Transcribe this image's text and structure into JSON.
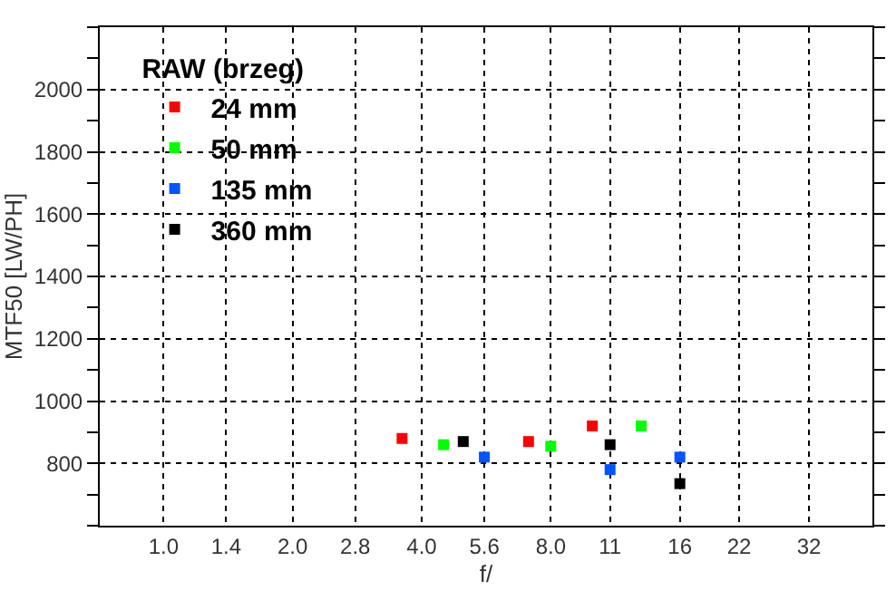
{
  "chart_data": {
    "type": "scatter",
    "xlabel": "f/",
    "ylabel": "MTF50 [LW/PH]",
    "legend_title": "RAW (brzeg)",
    "log": "x",
    "marker": "square",
    "grid": true,
    "legend": "top left",
    "xlim": [
      0.71,
      45
    ],
    "ylim": [
      600,
      2200
    ],
    "xticks": [
      {
        "value": 1,
        "label": "1.0"
      },
      {
        "value": 1.4,
        "label": "1.4"
      },
      {
        "value": 2,
        "label": "2.0"
      },
      {
        "value": 2.8,
        "label": "2.8"
      },
      {
        "value": 4,
        "label": "4.0"
      },
      {
        "value": 5.6,
        "label": "5.6"
      },
      {
        "value": 8,
        "label": "8.0"
      },
      11,
      16,
      22,
      32
    ],
    "yticks": [
      800,
      1000,
      1200,
      1400,
      1600,
      1800,
      2000
    ],
    "series": [
      {
        "name": "24 mm",
        "color": "#ff0000",
        "x": [
          3.6,
          7.1,
          10
        ],
        "values": [
          880,
          870,
          920
        ]
      },
      {
        "name": "50 mm",
        "color": "#00ff00",
        "x": [
          4.5,
          8.0,
          13
        ],
        "values": [
          860,
          855,
          920
        ]
      },
      {
        "name": "135 mm",
        "color": "#0055ff",
        "x": [
          5.6,
          11,
          16
        ],
        "values": [
          820,
          780,
          820
        ]
      },
      {
        "name": "360 mm",
        "color": "#000000",
        "x": [
          5.0,
          11,
          16
        ],
        "values": [
          870,
          860,
          735
        ]
      }
    ]
  }
}
